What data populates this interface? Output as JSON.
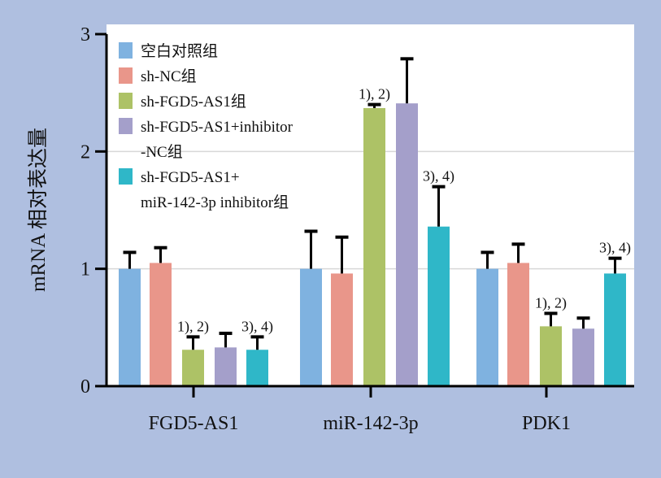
{
  "chart_data": {
    "type": "bar",
    "title": "",
    "xlabel": "",
    "ylabel": "mRNA 相对表达量",
    "ylim": [
      0,
      3
    ],
    "yticks": [
      "0",
      "1",
      "2",
      "3"
    ],
    "grid": true,
    "legend_position": "top-left",
    "categories": [
      "FGD5-AS1",
      "miR-142-3p",
      "PDK1"
    ],
    "series": [
      {
        "name": "空白对照组",
        "color": "#7fb2e0",
        "values": [
          1.0,
          1.0,
          1.0
        ],
        "errors": [
          1.14,
          1.32,
          1.14
        ],
        "annotations": [
          "",
          "",
          ""
        ]
      },
      {
        "name": "sh-NC组",
        "color": "#e9968a",
        "values": [
          1.05,
          0.96,
          1.05
        ],
        "errors": [
          1.18,
          1.27,
          1.21
        ],
        "annotations": [
          "",
          "",
          ""
        ]
      },
      {
        "name": "sh-FGD5-AS1组",
        "color": "#adc266",
        "values": [
          0.31,
          2.37,
          0.51
        ],
        "errors": [
          0.42,
          2.4,
          0.62
        ],
        "annotations": [
          "1), 2)",
          "1), 2)",
          "1), 2)"
        ]
      },
      {
        "name": "sh-FGD5-AS1+inhibitor -NC组",
        "legend_lines": [
          "sh-FGD5-AS1+inhibitor",
          "-NC组"
        ],
        "color": "#a49fca",
        "values": [
          0.33,
          2.41,
          0.49
        ],
        "errors": [
          0.45,
          2.79,
          0.58
        ],
        "annotations": [
          "",
          "",
          ""
        ]
      },
      {
        "name": "sh-FGD5-AS1+ miR-142-3p inhibitor组",
        "legend_lines": [
          "sh-FGD5-AS1+",
          "miR-142-3p inhibitor组"
        ],
        "color": "#2fb7c8",
        "values": [
          0.31,
          1.36,
          0.96
        ],
        "errors": [
          0.42,
          1.7,
          1.09
        ],
        "annotations": [
          "3), 4)",
          "3), 4)",
          "3), 4)"
        ]
      }
    ]
  }
}
